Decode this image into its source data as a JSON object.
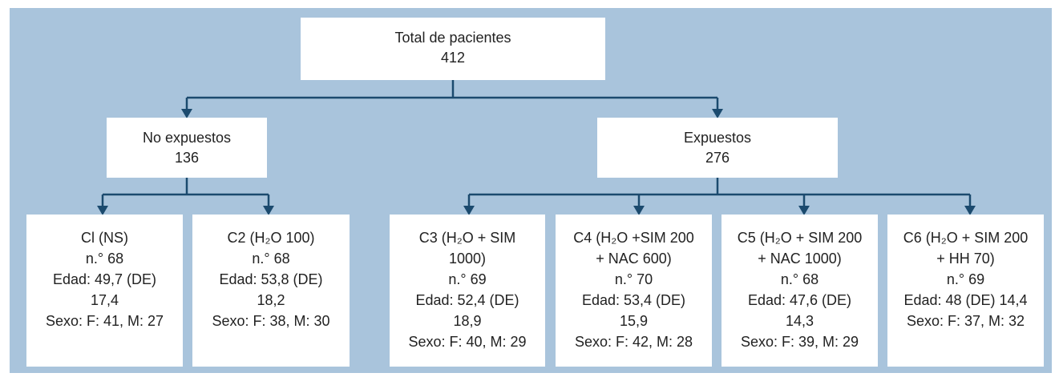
{
  "nodes": [
    {
      "lines": [
        "Total de pacientes",
        "412"
      ]
    },
    {
      "lines": [
        "No expuestos",
        "136"
      ]
    },
    {
      "lines": [
        "Expuestos",
        "276"
      ]
    },
    {
      "lines": [
        "Cl (NS)",
        "n.° 68",
        "Edad: 49,7 (DE)",
        "17,4",
        "Sexo: F: 41, M: 27"
      ]
    },
    {
      "lines": [
        "C2 (H₂O 100)",
        "n.° 68",
        "Edad: 53,8 (DE)",
        "18,2",
        "Sexo: F: 38, M: 30"
      ]
    },
    {
      "lines": [
        "C3 (H₂O + SIM",
        "1000)",
        "n.° 69",
        "Edad: 52,4 (DE)",
        "18,9",
        "Sexo: F: 40, M: 29"
      ]
    },
    {
      "lines": [
        "C4 (H₂O +SIM 200",
        "+ NAC 600)",
        "n.° 70",
        "Edad: 53,4 (DE)",
        "15,9",
        "Sexo: F: 42, M: 28"
      ]
    },
    {
      "lines": [
        "C5 (H₂O + SIM 200",
        "+ NAC 1000)",
        "n.° 68",
        "Edad: 47,6 (DE)",
        "14,3",
        "Sexo: F: 39, M: 29"
      ]
    },
    {
      "lines": [
        "C6 (H₂O + SIM 200",
        "+ HH 70)",
        "n.° 69",
        "Edad: 48 (DE) 14,4",
        "Sexo: F: 37, M: 32"
      ]
    }
  ]
}
